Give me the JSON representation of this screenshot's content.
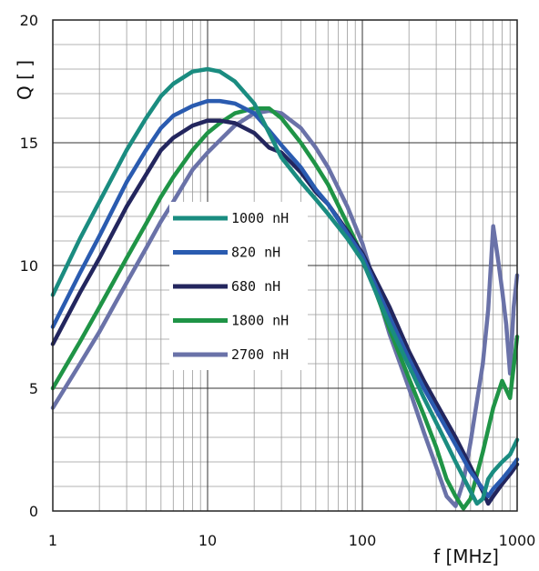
{
  "chart_data": {
    "type": "line",
    "title": "",
    "xlabel": "f [MHz]",
    "ylabel": "Q [ ]",
    "x_scale": "log",
    "xlim": [
      1,
      1000
    ],
    "ylim": [
      0,
      20
    ],
    "x_ticks": [
      1,
      10,
      100,
      1000
    ],
    "x_tick_labels": [
      "1",
      "10",
      "100",
      "1000"
    ],
    "y_ticks": [
      0,
      5,
      10,
      15,
      20
    ],
    "y_tick_labels": [
      "0",
      "5",
      "10",
      "15",
      "20"
    ],
    "grid": true,
    "legend_position": "center-left",
    "series": [
      {
        "name": "1000 nH",
        "color": "#1a8c80",
        "x": [
          1,
          1.5,
          2,
          3,
          4,
          5,
          6,
          8,
          10,
          12,
          15,
          20,
          25,
          30,
          40,
          50,
          60,
          80,
          100,
          150,
          200,
          250,
          300,
          400,
          500,
          550,
          600,
          650,
          700,
          800,
          900,
          1000
        ],
        "y": [
          8.8,
          11.1,
          12.6,
          14.7,
          16.0,
          16.9,
          17.4,
          17.9,
          18.0,
          17.9,
          17.5,
          16.6,
          15.4,
          14.4,
          13.4,
          12.7,
          12.1,
          11.1,
          10.2,
          7.6,
          5.9,
          4.6,
          3.6,
          2.0,
          0.8,
          0.3,
          0.5,
          1.3,
          1.6,
          2.0,
          2.3,
          2.9
        ]
      },
      {
        "name": "820 nH",
        "color": "#2a5bb0",
        "x": [
          1,
          1.5,
          2,
          3,
          4,
          5,
          6,
          8,
          10,
          12,
          15,
          20,
          25,
          30,
          40,
          50,
          60,
          80,
          100,
          150,
          200,
          250,
          300,
          400,
          500,
          600,
          650,
          700,
          800,
          900,
          1000
        ],
        "y": [
          7.5,
          9.7,
          11.2,
          13.4,
          14.7,
          15.6,
          16.1,
          16.5,
          16.7,
          16.7,
          16.6,
          16.2,
          15.5,
          14.9,
          14.0,
          13.1,
          12.5,
          11.3,
          10.4,
          7.9,
          6.2,
          5.0,
          4.1,
          2.7,
          1.6,
          0.9,
          0.6,
          0.9,
          1.3,
          1.7,
          2.1
        ]
      },
      {
        "name": "680 nH",
        "color": "#23265e",
        "x": [
          1,
          1.5,
          2,
          3,
          4,
          5,
          6,
          8,
          10,
          12,
          15,
          20,
          25,
          30,
          40,
          50,
          60,
          80,
          100,
          150,
          200,
          250,
          300,
          400,
          500,
          600,
          650,
          700,
          800,
          900,
          1000
        ],
        "y": [
          6.8,
          8.9,
          10.3,
          12.4,
          13.7,
          14.7,
          15.2,
          15.7,
          15.9,
          15.9,
          15.8,
          15.4,
          14.8,
          14.6,
          13.8,
          13.0,
          12.5,
          11.4,
          10.5,
          8.3,
          6.5,
          5.3,
          4.4,
          3.0,
          1.8,
          0.8,
          0.3,
          0.6,
          1.1,
          1.5,
          1.9
        ]
      },
      {
        "name": "1800 nH",
        "color": "#1f9446",
        "x": [
          1,
          1.5,
          2,
          3,
          4,
          5,
          6,
          8,
          10,
          12,
          15,
          20,
          25,
          30,
          40,
          50,
          60,
          80,
          100,
          150,
          200,
          250,
          300,
          350,
          400,
          450,
          500,
          600,
          700,
          800,
          900,
          1000
        ],
        "y": [
          5.0,
          6.9,
          8.3,
          10.3,
          11.7,
          12.8,
          13.6,
          14.7,
          15.4,
          15.8,
          16.2,
          16.4,
          16.4,
          16.0,
          15.0,
          14.1,
          13.3,
          11.7,
          10.4,
          7.4,
          5.4,
          3.9,
          2.6,
          1.3,
          0.6,
          0.1,
          0.5,
          2.4,
          4.2,
          5.3,
          4.6,
          7.1
        ]
      },
      {
        "name": "2700 nH",
        "color": "#6a72a8",
        "x": [
          1,
          1.5,
          2,
          3,
          4,
          5,
          6,
          8,
          10,
          12,
          15,
          20,
          25,
          30,
          40,
          50,
          60,
          80,
          100,
          150,
          200,
          250,
          300,
          350,
          400,
          450,
          500,
          600,
          650,
          700,
          750,
          800,
          850,
          900,
          950,
          1000
        ],
        "y": [
          4.2,
          6.0,
          7.3,
          9.3,
          10.7,
          11.8,
          12.6,
          13.9,
          14.6,
          15.1,
          15.7,
          16.2,
          16.3,
          16.2,
          15.6,
          14.8,
          14.0,
          12.4,
          10.9,
          7.2,
          5.0,
          3.2,
          1.8,
          0.6,
          0.2,
          1.2,
          2.8,
          6.0,
          8.2,
          11.6,
          10.3,
          9.0,
          7.6,
          5.6,
          8.3,
          9.6
        ]
      }
    ]
  }
}
